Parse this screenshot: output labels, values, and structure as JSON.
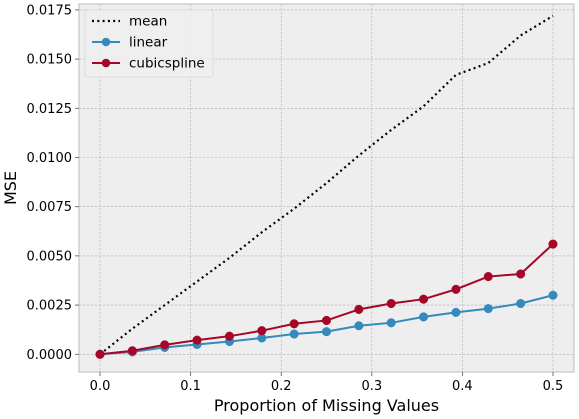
{
  "chart_data": {
    "type": "line",
    "title": "",
    "xlabel": "Proportion of Missing Values",
    "ylabel": "MSE",
    "xlim": [
      -0.0232,
      0.5232
    ],
    "ylim": [
      -0.0009,
      0.0178
    ],
    "x_ticks": [
      0.0,
      0.1,
      0.2,
      0.3,
      0.4,
      0.5
    ],
    "x_tick_labels": [
      "0.0",
      "0.1",
      "0.2",
      "0.3",
      "0.4",
      "0.5"
    ],
    "y_ticks": [
      0.0,
      0.0025,
      0.005,
      0.0075,
      0.01,
      0.0125,
      0.015,
      0.0175
    ],
    "y_tick_labels": [
      "0.0000",
      "0.0025",
      "0.0050",
      "0.0075",
      "0.0100",
      "0.0125",
      "0.0150",
      "0.0175"
    ],
    "grid": true,
    "legend_position": "top-left",
    "x": [
      0.0,
      0.0357,
      0.0714,
      0.1071,
      0.1429,
      0.1786,
      0.2143,
      0.25,
      0.2857,
      0.3214,
      0.3571,
      0.3929,
      0.4286,
      0.4643,
      0.5
    ],
    "series": [
      {
        "name": "mean",
        "style": "dotted",
        "color": "#000000",
        "marker": false,
        "values": [
          0.0,
          0.0013,
          0.0025,
          0.0037,
          0.0049,
          0.0062,
          0.0074,
          0.0087,
          0.0101,
          0.0114,
          0.0126,
          0.0142,
          0.0148,
          0.0162,
          0.0172
        ]
      },
      {
        "name": "linear",
        "style": "solid",
        "color": "#348ABD",
        "marker": true,
        "values": [
          0.0,
          0.00012,
          0.00035,
          0.0005,
          0.00065,
          0.00083,
          0.00103,
          0.00115,
          0.00145,
          0.0016,
          0.0019,
          0.00213,
          0.00232,
          0.00258,
          0.003
        ]
      },
      {
        "name": "cubicspline",
        "style": "solid",
        "color": "#A60628",
        "marker": true,
        "values": [
          0.0,
          0.00018,
          0.00048,
          0.00072,
          0.00092,
          0.0012,
          0.00155,
          0.00172,
          0.00228,
          0.00258,
          0.0028,
          0.0033,
          0.00395,
          0.00408,
          0.0056
        ]
      }
    ]
  },
  "colors": {
    "plot_background": "#EEEEEE",
    "frame": "#BCBCBC",
    "grid": "#B2B2B2"
  }
}
